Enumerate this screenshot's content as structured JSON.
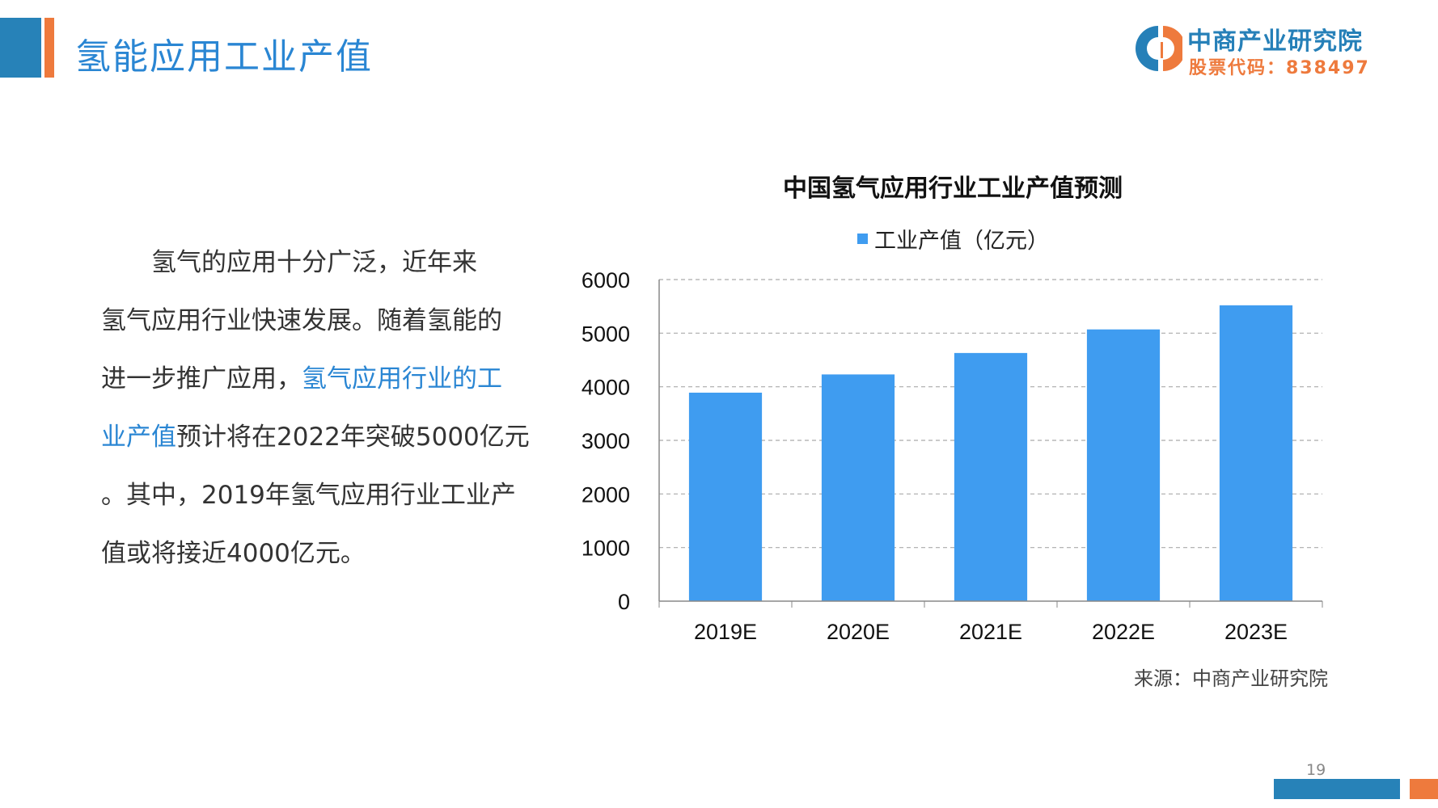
{
  "header": {
    "title": "氢能应用工业产值"
  },
  "logo": {
    "name": "中商产业研究院",
    "stock_code": "股票代码：838497"
  },
  "paragraph": {
    "lines": [
      [
        {
          "text": "　　氢气的应用十分广泛，近年来",
          "highlight": false
        }
      ],
      [
        {
          "text": "氢气应用行业快速发展。随着氢能的",
          "highlight": false
        }
      ],
      [
        {
          "text": "进一步推广应用，",
          "highlight": false
        },
        {
          "text": "氢气应用行业的工",
          "highlight": true
        }
      ],
      [
        {
          "text": "业产值",
          "highlight": true
        },
        {
          "text": "预计将在2022年突破5000亿元",
          "highlight": false
        }
      ],
      [
        {
          "text": "。其中，2019年氢气应用行业工业产",
          "highlight": false
        }
      ],
      [
        {
          "text": "值或将接近4000亿元。",
          "highlight": false
        }
      ]
    ]
  },
  "chart_data": {
    "type": "bar",
    "title": "中国氢气应用行业工业产值预测",
    "categories": [
      "2019E",
      "2020E",
      "2021E",
      "2022E",
      "2023E"
    ],
    "series": [
      {
        "name": "工业产值（亿元）",
        "values": [
          3890,
          4230,
          4630,
          5070,
          5520
        ],
        "color": "#3f9cf0"
      }
    ],
    "ylim": [
      0,
      6000
    ],
    "yticks": [
      0,
      1000,
      2000,
      3000,
      4000,
      5000,
      6000
    ],
    "grid": true,
    "legend": "top"
  },
  "source": "来源：中商产业研究院",
  "page_number": "19",
  "colors": {
    "brand_blue": "#2782b8",
    "brand_orange": "#ee7a3d",
    "highlight": "#2a86d3"
  }
}
